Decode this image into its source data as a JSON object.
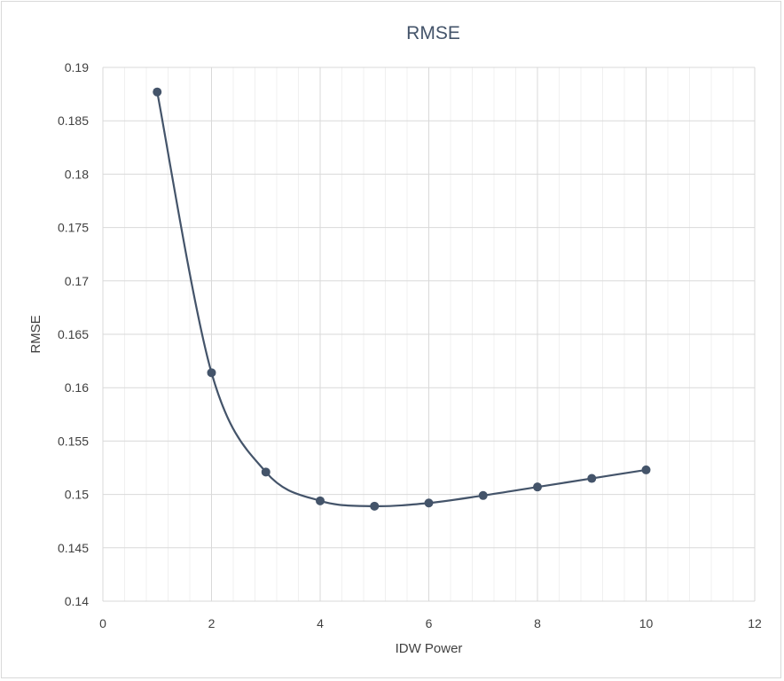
{
  "chart_data": {
    "type": "scatter",
    "title": "RMSE",
    "xlabel": "IDW Power",
    "ylabel": "RMSE",
    "xlim": [
      0,
      12
    ],
    "ylim": [
      0.14,
      0.19
    ],
    "x_ticks": [
      "0",
      "2",
      "4",
      "6",
      "8",
      "10",
      "12"
    ],
    "y_ticks": [
      "0.14",
      "0.145",
      "0.15",
      "0.155",
      "0.16",
      "0.165",
      "0.17",
      "0.175",
      "0.18",
      "0.185",
      "0.19"
    ],
    "grid": true,
    "minor_grid": true,
    "smooth": true,
    "legend": "none",
    "series": [
      {
        "x": [
          1,
          2,
          3,
          4,
          5,
          6,
          7,
          8,
          9,
          10
        ],
        "values": [
          0.1877,
          0.1614,
          0.1521,
          0.1494,
          0.1489,
          0.1492,
          0.1499,
          0.1507,
          0.1515,
          0.1523
        ],
        "color": "#44546a"
      }
    ]
  }
}
